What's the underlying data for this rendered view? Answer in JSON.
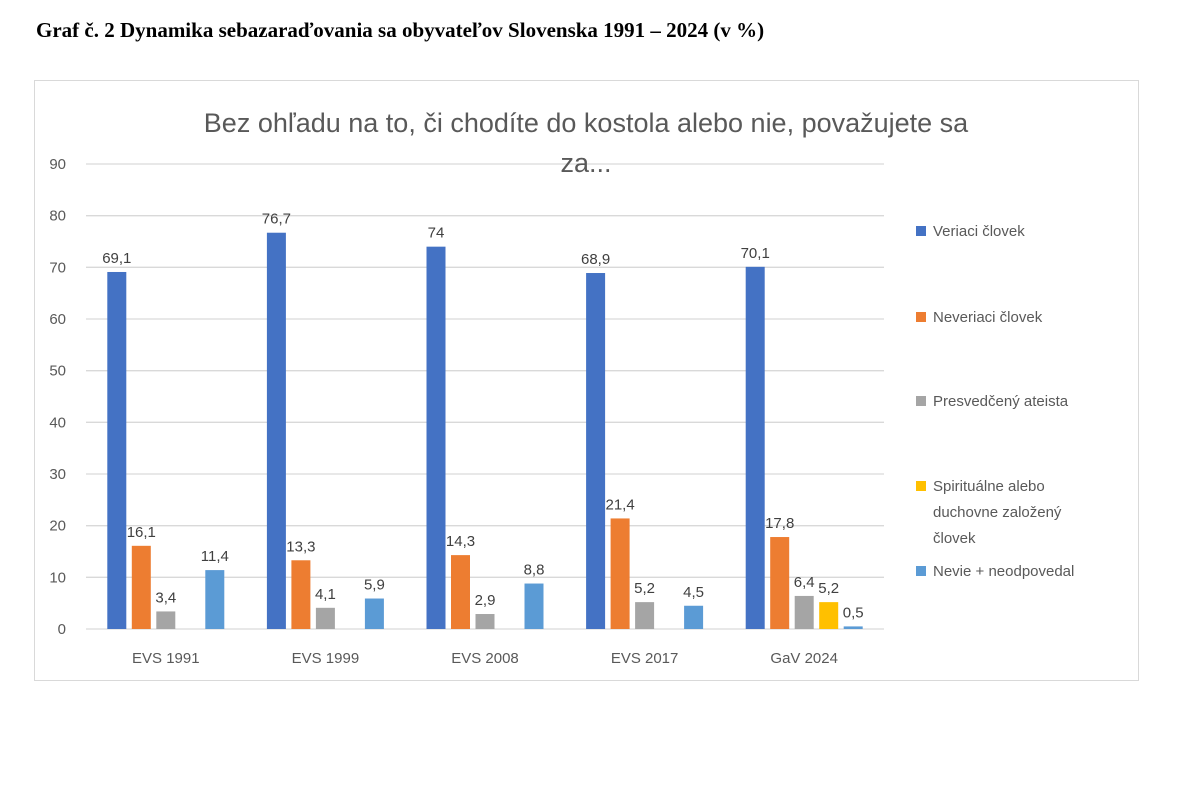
{
  "document": {
    "caption": "Graf č. 2 Dynamika sebazaraďovania sa obyvateľov Slovenska 1991 – 2024 (v %)"
  },
  "chart_data": {
    "type": "bar",
    "title_lines": [
      "Bez ohľadu na to, či chodíte do kostola alebo nie, považujete sa",
      "za..."
    ],
    "xlabel": "",
    "ylabel": "",
    "ylim": [
      0,
      90
    ],
    "yticks": [
      0,
      10,
      20,
      30,
      40,
      50,
      60,
      70,
      80,
      90
    ],
    "grid": true,
    "legend_position": "right",
    "categories": [
      "EVS 1991",
      "EVS 1999",
      "EVS 2008",
      "EVS 2017",
      "GaV 2024"
    ],
    "series": [
      {
        "name": "Veriaci človek",
        "legend_lines": [
          "Veriaci človek"
        ],
        "color": "#4472C4",
        "values": [
          69.1,
          76.7,
          74,
          68.9,
          70.1
        ],
        "labels": [
          "69,1",
          "76,7",
          "74",
          "68,9",
          "70,1"
        ]
      },
      {
        "name": "Neveriaci človek",
        "legend_lines": [
          "Neveriaci človek"
        ],
        "color": "#ED7D31",
        "values": [
          16.1,
          13.3,
          14.3,
          21.4,
          17.8
        ],
        "labels": [
          "16,1",
          "13,3",
          "14,3",
          "21,4",
          "17,8"
        ]
      },
      {
        "name": "Presvedčený ateista",
        "legend_lines": [
          "Presvedčený ateista"
        ],
        "color": "#A5A5A5",
        "values": [
          3.4,
          4.1,
          2.9,
          5.2,
          6.4
        ],
        "labels": [
          "3,4",
          "4,1",
          "2,9",
          "5,2",
          "6,4"
        ]
      },
      {
        "name": "Spirituálne alebo duchovne založený človek",
        "legend_lines": [
          "Spirituálne alebo",
          "duchovne založený",
          "človek"
        ],
        "color": "#FFC000",
        "values": [
          null,
          null,
          null,
          null,
          5.2
        ],
        "labels": [
          null,
          null,
          null,
          null,
          "5,2"
        ]
      },
      {
        "name": "Nevie + neodpovedal",
        "legend_lines": [
          "Nevie + neodpovedal"
        ],
        "color": "#5B9BD5",
        "values": [
          11.4,
          5.9,
          8.8,
          4.5,
          0.5
        ],
        "labels": [
          "11,4",
          "5,9",
          "8,8",
          "4,5",
          "0,5"
        ]
      }
    ]
  }
}
